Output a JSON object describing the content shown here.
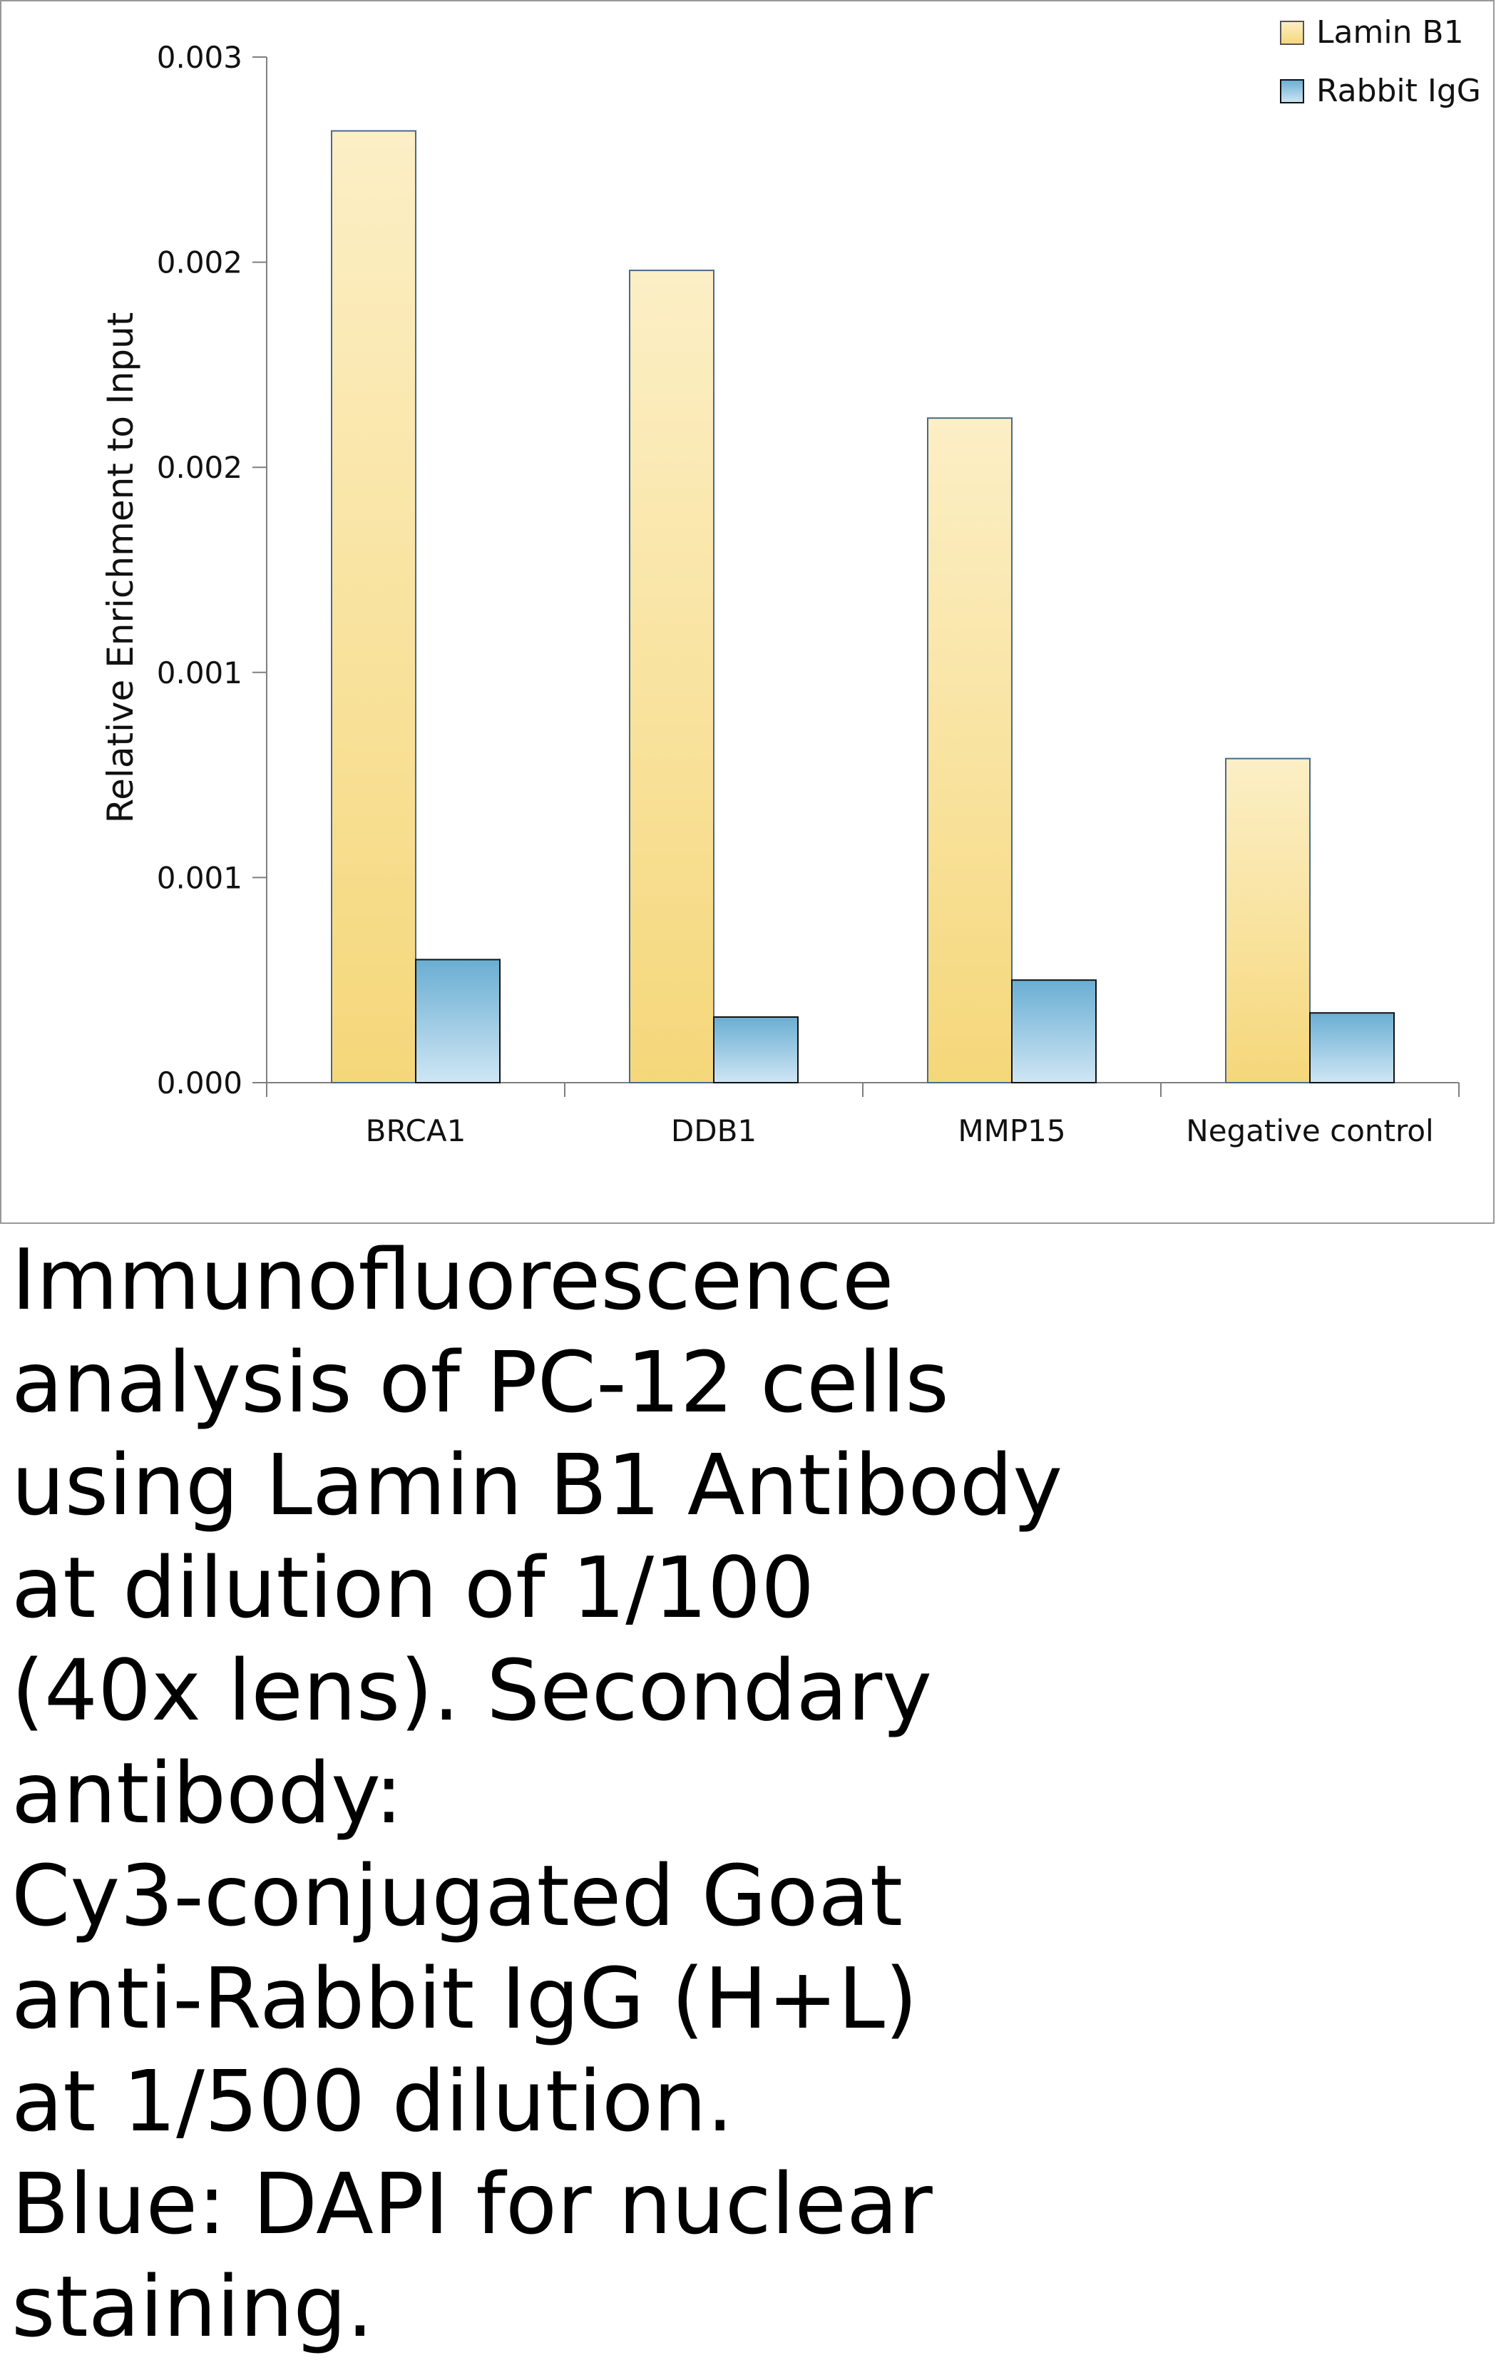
{
  "chart_data": {
    "type": "bar",
    "title": "",
    "xlabel": "",
    "ylabel": "Relative Enrichment to Input",
    "ylim": [
      0,
      0.0025
    ],
    "y_tick_values": [
      0,
      0.0005,
      0.001,
      0.0015,
      0.002,
      0.0025
    ],
    "y_tick_labels": [
      "0.000",
      "0.001",
      "0.001",
      "0.002",
      "0.002",
      "0.003"
    ],
    "categories": [
      "BRCA1",
      "DDB1",
      "MMP15",
      "Negative control"
    ],
    "series": [
      {
        "name": "Lamin B1",
        "values": [
          0.00232,
          0.00198,
          0.00162,
          0.00079
        ],
        "color": "#f5d77a"
      },
      {
        "name": "Rabbit IgG",
        "values": [
          0.0003,
          0.00016,
          0.00025,
          0.00017
        ],
        "color": "#7fb8d8"
      }
    ],
    "legend_position": "top-right",
    "grid": false
  },
  "caption": {
    "text": "Immunofluorescence\nanalysis of PC-12 cells\nusing Lamin B1 Antibody\nat dilution of 1/100\n(40x lens). Secondary\nantibody:\nCy3-conjugated Goat\nanti-Rabbit IgG (H+L)\nat 1/500 dilution.\nBlue: DAPI for nuclear\nstaining."
  }
}
